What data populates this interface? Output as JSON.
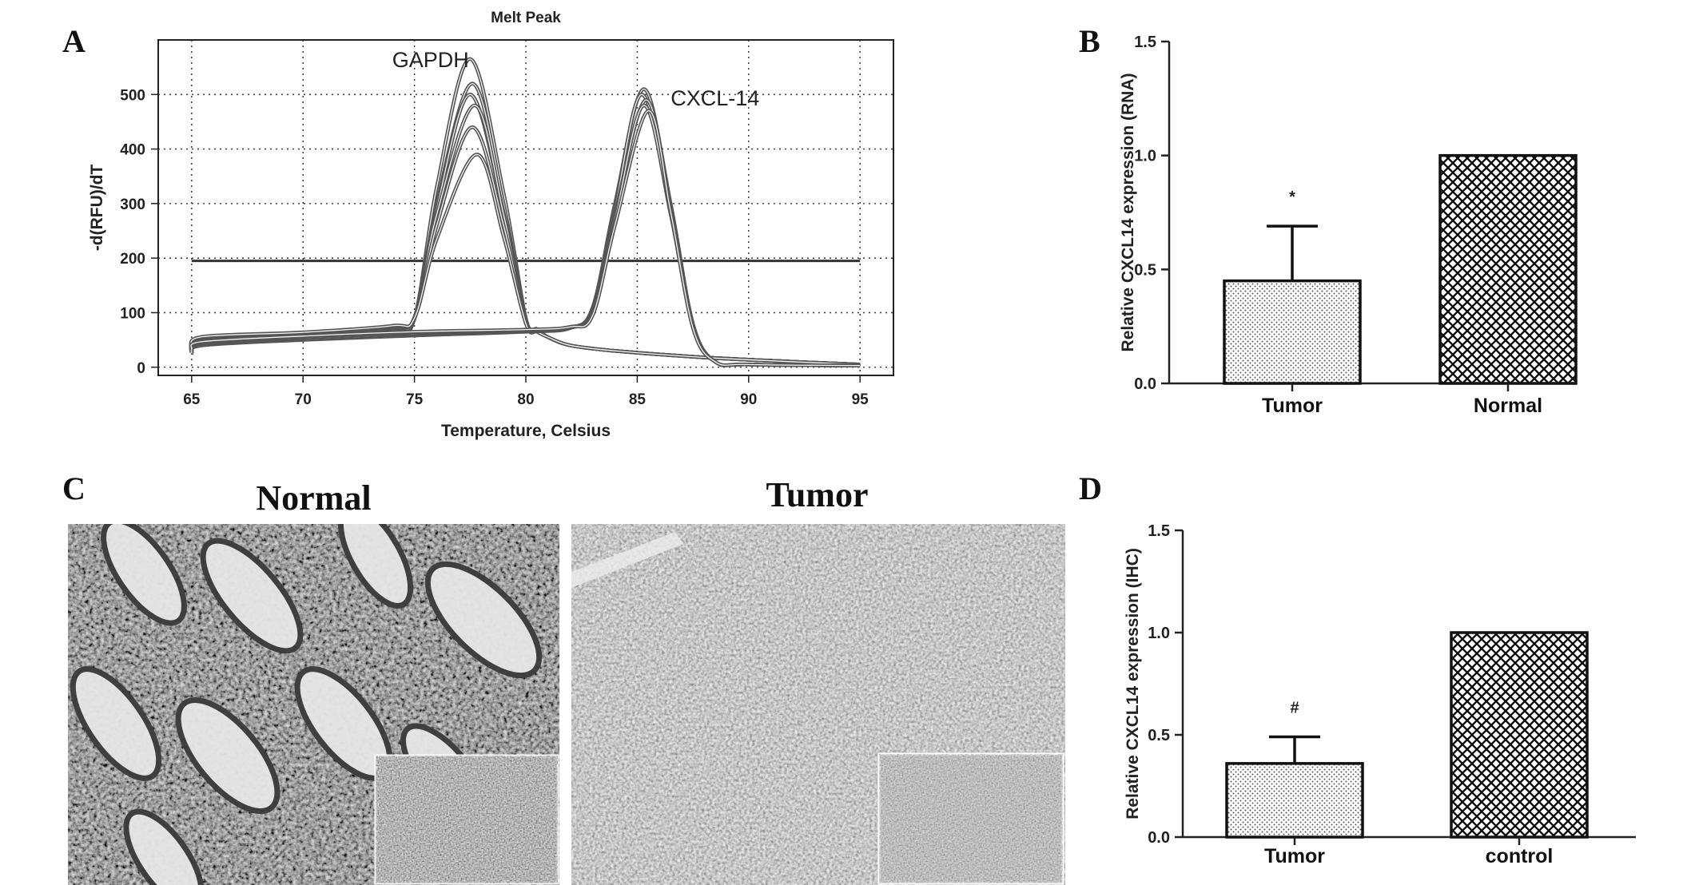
{
  "panels": {
    "A": {
      "letter": "A",
      "chart_data": {
        "type": "line",
        "title": "Melt Peak",
        "xlabel": "Temperature, Celsius",
        "ylabel": "-d(RFU)/dT",
        "xlim": [
          63.5,
          96.5
        ],
        "ylim": [
          -15,
          600
        ],
        "xticks": [
          65,
          70,
          75,
          80,
          85,
          90,
          95
        ],
        "yticks": [
          0,
          100,
          200,
          300,
          400,
          500
        ],
        "grid": "dotted",
        "threshold": 195,
        "annotations": [
          {
            "text": "GAPDH",
            "x": 74,
            "y": 550
          },
          {
            "text": "CXCL-14",
            "x": 86.5,
            "y": 480
          }
        ],
        "series": [
          {
            "peak_x": 77.5,
            "peak_y": 565,
            "values": [
              [
                65,
                25
              ],
              [
                65.5,
                48
              ],
              [
                70,
                55
              ],
              [
                74,
                68
              ],
              [
                75,
                90
              ],
              [
                76,
                330
              ],
              [
                77.5,
                565
              ],
              [
                79,
                320
              ],
              [
                80,
                90
              ],
              [
                80.5,
                70
              ],
              [
                81,
                55
              ],
              [
                82,
                40
              ],
              [
                84,
                30
              ],
              [
                88,
                18
              ],
              [
                92,
                10
              ],
              [
                95,
                5
              ]
            ]
          },
          {
            "peak_x": 77.6,
            "peak_y": 520,
            "values": [
              [
                65,
                28
              ],
              [
                65.5,
                50
              ],
              [
                70,
                58
              ],
              [
                74,
                70
              ],
              [
                75,
                88
              ],
              [
                76,
                300
              ],
              [
                77.6,
                520
              ],
              [
                79,
                300
              ],
              [
                80,
                85
              ],
              [
                80.5,
                68
              ],
              [
                81,
                55
              ],
              [
                82,
                40
              ],
              [
                84,
                30
              ],
              [
                88,
                18
              ],
              [
                92,
                10
              ],
              [
                95,
                5
              ]
            ]
          },
          {
            "peak_x": 77.5,
            "peak_y": 500,
            "values": [
              [
                65,
                30
              ],
              [
                65.5,
                52
              ],
              [
                70,
                60
              ],
              [
                74,
                72
              ],
              [
                75,
                90
              ],
              [
                76,
                290
              ],
              [
                77.5,
                500
              ],
              [
                79,
                285
              ],
              [
                80,
                85
              ],
              [
                80.5,
                68
              ],
              [
                81,
                55
              ],
              [
                82,
                40
              ],
              [
                84,
                30
              ],
              [
                88,
                18
              ],
              [
                92,
                10
              ],
              [
                95,
                5
              ]
            ]
          },
          {
            "peak_x": 77.7,
            "peak_y": 480,
            "values": [
              [
                65,
                32
              ],
              [
                65.5,
                54
              ],
              [
                70,
                62
              ],
              [
                74,
                74
              ],
              [
                75,
                92
              ],
              [
                76,
                280
              ],
              [
                77.7,
                480
              ],
              [
                79,
                280
              ],
              [
                80,
                85
              ],
              [
                80.5,
                68
              ],
              [
                81,
                55
              ],
              [
                82,
                40
              ],
              [
                84,
                30
              ],
              [
                88,
                18
              ],
              [
                92,
                10
              ],
              [
                95,
                5
              ]
            ]
          },
          {
            "peak_x": 77.6,
            "peak_y": 440,
            "values": [
              [
                65,
                34
              ],
              [
                65.5,
                55
              ],
              [
                70,
                63
              ],
              [
                74,
                75
              ],
              [
                75,
                90
              ],
              [
                76,
                260
              ],
              [
                77.6,
                440
              ],
              [
                79,
                260
              ],
              [
                80,
                82
              ],
              [
                80.5,
                66
              ],
              [
                81,
                55
              ],
              [
                82,
                40
              ],
              [
                84,
                30
              ],
              [
                88,
                18
              ],
              [
                92,
                10
              ],
              [
                95,
                5
              ]
            ]
          },
          {
            "peak_x": 77.8,
            "peak_y": 390,
            "values": [
              [
                65,
                36
              ],
              [
                65.5,
                56
              ],
              [
                70,
                64
              ],
              [
                74,
                76
              ],
              [
                75,
                90
              ],
              [
                76,
                235
              ],
              [
                77.8,
                390
              ],
              [
                79,
                240
              ],
              [
                80,
                80
              ],
              [
                80.5,
                65
              ],
              [
                81,
                55
              ],
              [
                82,
                40
              ],
              [
                84,
                30
              ],
              [
                88,
                18
              ],
              [
                92,
                10
              ],
              [
                95,
                5
              ]
            ]
          },
          {
            "peak_x": 85.3,
            "peak_y": 510,
            "values": [
              [
                65,
                25
              ],
              [
                65.5,
                40
              ],
              [
                70,
                50
              ],
              [
                75,
                58
              ],
              [
                80,
                65
              ],
              [
                82,
                72
              ],
              [
                83,
                110
              ],
              [
                84,
                300
              ],
              [
                85.3,
                510
              ],
              [
                86.5,
                300
              ],
              [
                87.5,
                80
              ],
              [
                88.5,
                10
              ],
              [
                90,
                5
              ],
              [
                95,
                3
              ]
            ]
          },
          {
            "peak_x": 85.2,
            "peak_y": 500,
            "values": [
              [
                65,
                28
              ],
              [
                65.5,
                42
              ],
              [
                70,
                52
              ],
              [
                75,
                60
              ],
              [
                80,
                66
              ],
              [
                82,
                72
              ],
              [
                83,
                105
              ],
              [
                84,
                290
              ],
              [
                85.2,
                500
              ],
              [
                86.5,
                295
              ],
              [
                87.5,
                78
              ],
              [
                88.5,
                10
              ],
              [
                90,
                5
              ],
              [
                95,
                3
              ]
            ]
          },
          {
            "peak_x": 85.4,
            "peak_y": 490,
            "values": [
              [
                65,
                30
              ],
              [
                65.5,
                44
              ],
              [
                70,
                54
              ],
              [
                75,
                62
              ],
              [
                80,
                67
              ],
              [
                82,
                73
              ],
              [
                83,
                100
              ],
              [
                84,
                280
              ],
              [
                85.4,
                490
              ],
              [
                86.5,
                290
              ],
              [
                87.5,
                76
              ],
              [
                88.5,
                10
              ],
              [
                90,
                5
              ],
              [
                95,
                3
              ]
            ]
          },
          {
            "peak_x": 85.3,
            "peak_y": 480,
            "values": [
              [
                65,
                32
              ],
              [
                65.5,
                46
              ],
              [
                70,
                56
              ],
              [
                75,
                64
              ],
              [
                80,
                68
              ],
              [
                82,
                74
              ],
              [
                83,
                98
              ],
              [
                84,
                270
              ],
              [
                85.3,
                480
              ],
              [
                86.5,
                280
              ],
              [
                87.5,
                74
              ],
              [
                88.5,
                10
              ],
              [
                90,
                5
              ],
              [
                95,
                3
              ]
            ]
          },
          {
            "peak_x": 85.5,
            "peak_y": 470,
            "values": [
              [
                65,
                34
              ],
              [
                65.5,
                47
              ],
              [
                70,
                57
              ],
              [
                75,
                65
              ],
              [
                80,
                69
              ],
              [
                82,
                74
              ],
              [
                83,
                95
              ],
              [
                84,
                260
              ],
              [
                85.5,
                470
              ],
              [
                86.5,
                285
              ],
              [
                87.5,
                72
              ],
              [
                88.5,
                10
              ],
              [
                90,
                5
              ],
              [
                95,
                3
              ]
            ]
          }
        ]
      }
    },
    "B": {
      "letter": "B",
      "chart_data": {
        "type": "bar",
        "categories": [
          "Tumor",
          "Normal"
        ],
        "values": [
          0.45,
          1.0
        ],
        "error": [
          0.24,
          0
        ],
        "ylabel": "Relative CXCL14 expression (RNA)",
        "ylim": [
          0,
          1.5
        ],
        "yticks": [
          "0.0",
          "0.5",
          "1.0",
          "1.5"
        ],
        "annotations": [
          "*",
          ""
        ],
        "fills": [
          "dots",
          "crosshatch"
        ]
      }
    },
    "C": {
      "letter": "C",
      "images": [
        {
          "title": "Normal"
        },
        {
          "title": "Tumor"
        }
      ]
    },
    "D": {
      "letter": "D",
      "chart_data": {
        "type": "bar",
        "categories": [
          "Tumor",
          "control"
        ],
        "values": [
          0.36,
          1.0
        ],
        "error": [
          0.13,
          0
        ],
        "ylabel": "Relative CXCL14 expression (IHC)",
        "ylim": [
          0,
          1.5
        ],
        "yticks": [
          "0.0",
          "0.5",
          "1.0",
          "1.5"
        ],
        "annotations": [
          "#",
          ""
        ],
        "fills": [
          "dots",
          "crosshatch"
        ]
      }
    }
  }
}
